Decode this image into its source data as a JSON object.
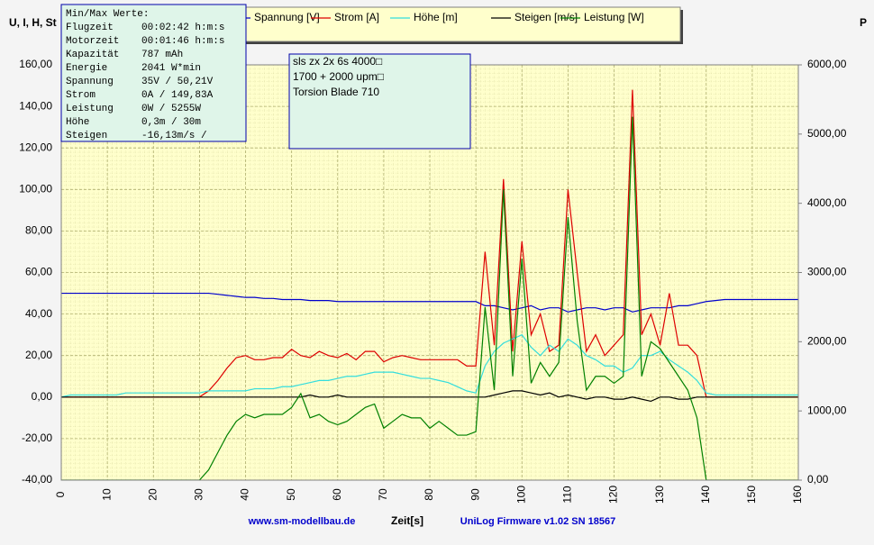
{
  "chart_data": {
    "type": "line",
    "ylabel": "U, I, H, St",
    "y2label": "P",
    "xlabel": "Zeit[s]",
    "x": [
      0,
      2,
      4,
      6,
      8,
      10,
      12,
      14,
      16,
      18,
      20,
      22,
      24,
      26,
      28,
      30,
      32,
      34,
      36,
      38,
      40,
      42,
      44,
      46,
      48,
      50,
      52,
      54,
      56,
      58,
      60,
      62,
      64,
      66,
      68,
      70,
      72,
      74,
      76,
      78,
      80,
      82,
      84,
      86,
      88,
      90,
      92,
      94,
      96,
      98,
      100,
      102,
      104,
      106,
      108,
      110,
      112,
      114,
      116,
      118,
      120,
      122,
      124,
      126,
      128,
      130,
      132,
      134,
      136,
      138,
      140,
      142,
      144,
      146,
      148,
      150,
      152,
      154,
      156,
      158,
      160
    ],
    "series": [
      {
        "name": "Spannung [V]",
        "color": "#0000cc",
        "values": [
          50,
          50,
          50,
          50,
          50,
          50,
          50,
          50,
          50,
          50,
          50,
          50,
          50,
          50,
          50,
          50,
          50,
          49.5,
          49,
          48.5,
          48,
          48,
          47.5,
          47.5,
          47,
          47,
          47,
          46.5,
          46.5,
          46.5,
          46,
          46,
          46,
          46,
          46,
          46,
          46,
          46,
          46,
          46,
          46,
          46,
          46,
          46,
          46,
          46,
          44,
          44,
          43,
          42,
          43,
          44,
          42,
          43,
          43,
          41,
          42,
          43,
          43,
          42,
          43,
          43,
          41,
          42,
          43,
          43,
          43,
          44,
          44,
          45,
          46,
          46.5,
          47,
          47,
          47,
          47,
          47,
          47,
          47,
          47,
          47
        ]
      },
      {
        "name": "Strom [A]",
        "color": "#dd0000",
        "values": [
          0,
          0,
          0,
          0,
          0,
          0,
          0,
          0,
          0,
          0,
          0,
          0,
          0,
          0,
          0,
          0,
          3,
          8,
          14,
          19,
          20,
          18,
          18,
          19,
          19,
          23,
          20,
          19,
          22,
          20,
          19,
          21,
          18,
          22,
          22,
          17,
          19,
          20,
          19,
          18,
          18,
          18,
          18,
          18,
          15,
          15,
          70,
          25,
          105,
          22,
          75,
          30,
          40,
          22,
          25,
          100,
          60,
          22,
          30,
          20,
          25,
          30,
          148,
          30,
          40,
          25,
          50,
          25,
          25,
          20,
          0,
          0,
          0,
          0,
          0,
          0,
          0,
          0,
          0,
          0,
          0
        ]
      },
      {
        "name": "Höhe [m]",
        "color": "#33dddd",
        "values": [
          0,
          1,
          1,
          1,
          1,
          1,
          1,
          2,
          2,
          2,
          2,
          2,
          2,
          2,
          2,
          2,
          3,
          3,
          3,
          3,
          3,
          4,
          4,
          4,
          5,
          5,
          6,
          7,
          8,
          8,
          9,
          10,
          10,
          11,
          12,
          12,
          12,
          11,
          10,
          9,
          9,
          8,
          7,
          5,
          3,
          2,
          15,
          22,
          26,
          28,
          30,
          24,
          20,
          25,
          22,
          28,
          25,
          20,
          18,
          15,
          15,
          12,
          14,
          20,
          20,
          22,
          18,
          15,
          12,
          8,
          2,
          1,
          1,
          1,
          1,
          1,
          1,
          1,
          1,
          1,
          1
        ]
      },
      {
        "name": "Steigen [m/s]",
        "color": "#000000",
        "values": [
          0,
          0,
          0,
          0,
          0,
          0,
          0,
          0,
          0,
          0,
          0,
          0,
          0,
          0,
          0,
          0,
          0,
          0,
          0,
          0,
          0,
          0,
          0,
          0,
          0,
          0,
          0,
          1,
          0,
          0,
          1,
          0,
          0,
          0,
          0,
          0,
          0,
          0,
          0,
          0,
          0,
          0,
          0,
          0,
          0,
          0,
          0,
          1,
          2,
          3,
          3,
          2,
          1,
          2,
          0,
          1,
          0,
          -1,
          0,
          0,
          -1,
          -1,
          0,
          -1,
          -2,
          0,
          0,
          -1,
          -1,
          0,
          0,
          0,
          0,
          0,
          0,
          0,
          0,
          0,
          0,
          0,
          0
        ]
      },
      {
        "name": "Leistung [W]",
        "color": "#008000",
        "axis": "y2",
        "values": [
          0,
          0,
          0,
          0,
          0,
          0,
          0,
          0,
          0,
          0,
          0,
          0,
          0,
          0,
          0,
          0,
          150,
          400,
          650,
          850,
          950,
          900,
          950,
          950,
          950,
          1050,
          1250,
          900,
          950,
          850,
          800,
          850,
          950,
          1050,
          1100,
          750,
          850,
          950,
          900,
          900,
          750,
          850,
          750,
          650,
          650,
          700,
          2500,
          1300,
          4200,
          1500,
          3200,
          1400,
          1700,
          1500,
          1700,
          3800,
          2300,
          1300,
          1500,
          1500,
          1400,
          1500,
          5250,
          1500,
          2000,
          1900,
          1700,
          1500,
          1300,
          900,
          0,
          0,
          0,
          0,
          0,
          0,
          0,
          0,
          0,
          0,
          0
        ]
      }
    ],
    "xlim": [
      0,
      160
    ],
    "xticks": [
      0,
      10,
      20,
      30,
      40,
      50,
      60,
      70,
      80,
      90,
      100,
      110,
      120,
      130,
      140,
      150,
      160
    ],
    "ylim": [
      -40,
      160
    ],
    "yticks": [
      {
        "value": -40,
        "label": "-40,00"
      },
      {
        "value": -20,
        "label": "-20,00"
      },
      {
        "value": 0,
        "label": "0,00"
      },
      {
        "value": 20,
        "label": "20,00"
      },
      {
        "value": 40,
        "label": "40,00"
      },
      {
        "value": 60,
        "label": "60,00"
      },
      {
        "value": 80,
        "label": "80,00"
      },
      {
        "value": 100,
        "label": "100,00"
      },
      {
        "value": 120,
        "label": "120,00"
      },
      {
        "value": 140,
        "label": "140,00"
      },
      {
        "value": 160,
        "label": "160,00"
      }
    ],
    "y2lim": [
      0,
      6000
    ],
    "y2ticks": [
      {
        "value": 0,
        "label": "0,00"
      },
      {
        "value": 1000,
        "label": "1000,00"
      },
      {
        "value": 2000,
        "label": "2000,00"
      },
      {
        "value": 3000,
        "label": "3000,00"
      },
      {
        "value": 4000,
        "label": "4000,00"
      },
      {
        "value": 5000,
        "label": "5000,00"
      },
      {
        "value": 6000,
        "label": "6000,00"
      }
    ],
    "grid": true,
    "annotations": [
      "sls zx 2x 6s 4000□",
      "1700 + 2000 upm□",
      "Torsion Blade 710"
    ]
  },
  "info_box": {
    "title": "Min/Max Werte:",
    "rows": [
      [
        "Flugzeit",
        "00:02:42 h:m:s"
      ],
      [
        "Motorzeit",
        "00:01:46 h:m:s"
      ],
      [
        "Kapazität",
        "787 mAh"
      ],
      [
        "Energie",
        "2041 W*min"
      ],
      [
        "Spannung",
        "35V / 50,21V"
      ],
      [
        "Strom",
        "0A / 149,83A"
      ],
      [
        "Leistung",
        "0W / 5255W"
      ],
      [
        "Höhe",
        "0,3m / 30m"
      ],
      [
        "Steigen",
        "-16,13m/s /"
      ]
    ]
  },
  "footer": {
    "website": "www.sm-modellbau.de",
    "firmware": "UniLog Firmware v1.02 SN 18567"
  }
}
